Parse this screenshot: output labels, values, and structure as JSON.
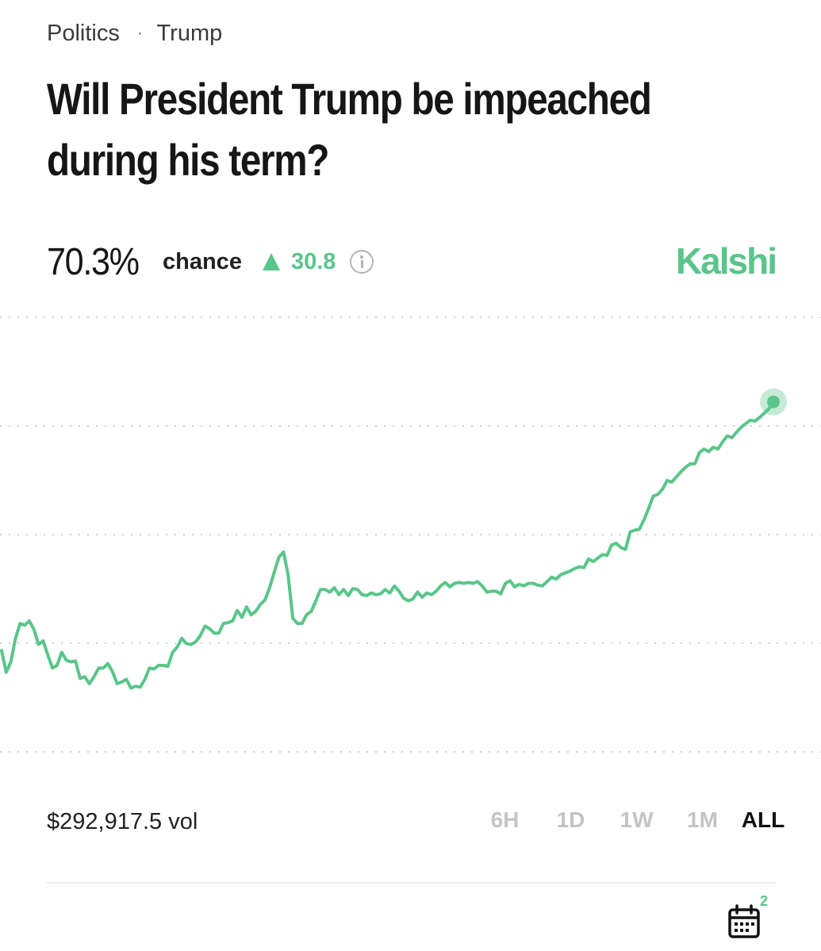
{
  "breadcrumb": {
    "category": "Politics",
    "separator": "·",
    "subcategory": "Trump"
  },
  "title": "Will President Trump be impeached during his term?",
  "stats": {
    "probability": "70.3%",
    "chance_label": "chance",
    "change": "30.8",
    "change_direction": "up",
    "info_icon": "info-icon"
  },
  "brand": "Kalshi",
  "colors": {
    "accent": "#5ac58a",
    "text": "#161616",
    "muted": "#c4c4c4"
  },
  "volume": "$292,917.5 vol",
  "time_ranges": [
    "6H",
    "1D",
    "1W",
    "1M",
    "ALL"
  ],
  "active_range": "ALL",
  "calendar": {
    "icon": "calendar-icon",
    "badge": "2"
  },
  "chart_data": {
    "type": "line",
    "ylim": [
      30,
      80
    ],
    "grid": "horizontal dotted",
    "end_point_marker": true,
    "series": [
      {
        "color": "#5ac58a",
        "values": [
          41.8,
          39.3,
          40.5,
          43.2,
          44.9,
          44.7,
          45.2,
          44.2,
          42.5,
          42.9,
          41.3,
          39.8,
          40.1,
          41.6,
          40.7,
          40.5,
          40.6,
          38.6,
          38.8,
          38.0,
          38.8,
          39.8,
          39.8,
          40.3,
          39.4,
          38.0,
          38.2,
          38.5,
          37.5,
          37.7,
          37.6,
          38.5,
          39.8,
          39.7,
          40.1,
          40.1,
          40.0,
          41.6,
          42.2,
          43.2,
          42.6,
          42.5,
          42.8,
          43.5,
          44.6,
          44.3,
          43.8,
          43.8,
          44.9,
          45.0,
          45.2,
          46.4,
          45.6,
          46.8,
          45.9,
          46.3,
          47.1,
          47.6,
          49.0,
          50.8,
          52.5,
          53.1,
          50.5,
          45.5,
          44.9,
          44.9,
          45.9,
          46.3,
          47.5,
          48.8,
          48.8,
          48.5,
          49.0,
          48.2,
          48.8,
          48.1,
          48.9,
          48.8,
          48.2,
          48.1,
          48.4,
          48.2,
          48.3,
          48.8,
          48.4,
          49.2,
          48.6,
          47.8,
          47.5,
          47.7,
          48.5,
          47.9,
          48.4,
          48.2,
          48.6,
          49.2,
          49.6,
          49.1,
          49.5,
          49.6,
          49.5,
          49.6,
          49.5,
          49.7,
          49.2,
          48.5,
          48.6,
          48.6,
          48.3,
          49.5,
          49.8,
          49.1,
          49.4,
          49.2,
          49.5,
          49.5,
          49.3,
          49.2,
          49.7,
          50.2,
          50.0,
          50.5,
          50.7,
          50.9,
          51.2,
          51.4,
          51.3,
          52.3,
          52.0,
          52.4,
          52.8,
          52.7,
          53.9,
          54.1,
          53.6,
          53.4,
          55.4,
          55.6,
          55.7,
          56.8,
          58.1,
          59.5,
          59.7,
          60.3,
          61.3,
          61.1,
          61.7,
          62.3,
          62.8,
          63.2,
          63.2,
          64.5,
          64.9,
          64.6,
          65.1,
          64.9,
          65.7,
          66.4,
          66.2,
          66.8,
          67.4,
          67.8,
          68.2,
          68.1,
          68.5,
          69.0,
          69.5,
          70.3
        ]
      }
    ]
  }
}
